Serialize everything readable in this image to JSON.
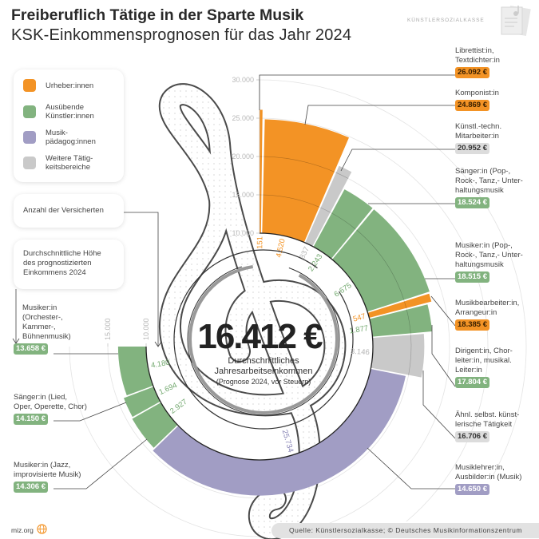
{
  "title": "Freiberuflich Tätige in der Sparte Musik",
  "subtitle": "KSK-Einkommensprognosen für das Jahr 2024",
  "logo_text": "KÜNSTLERSOZIALKASSE",
  "legend": [
    {
      "label": "Urheber:innen",
      "color": "#f39325"
    },
    {
      "label": "Ausübende\nKünstler:innen",
      "color": "#82b37f"
    },
    {
      "label": "Musik-\npädagog:innen",
      "color": "#a19dc4"
    },
    {
      "label": "Weitere Tätig-\nkeitsbereiche",
      "color": "#c9c9c9"
    }
  ],
  "info_boxes": {
    "count": "Anzahl der Versicherten",
    "income": "Durchschnittliche Höhe\ndes prognostizierten\nEinkommens 2024"
  },
  "center": {
    "value": "16.412 €",
    "caption": "Durchschnittliches\nJahresarbeitseinkommen",
    "note": "(Prognose 2024, vor Steuern)"
  },
  "chart_data": {
    "type": "radial-bar",
    "description_axis": "income (€) as radius, number of insured as arc width",
    "radial_axis": {
      "min": 10000,
      "max": 30000,
      "ticks": [
        "10.000",
        "15.000",
        "20.000",
        "25.000",
        "30.000"
      ],
      "left_ticks": [
        "15.000",
        "10.000"
      ]
    },
    "grid": true,
    "groups": {
      "orange": "#f39325",
      "green": "#82b37f",
      "grey": "#c9c9c9",
      "purple": "#a19dc4"
    },
    "segments": [
      {
        "label": "Librettist:in,\nTextdichter:in",
        "income": 26092,
        "income_label": "26.092 €",
        "count": 151,
        "count_label": "151",
        "group": "orange"
      },
      {
        "label": "Komponist:in",
        "income": 24869,
        "income_label": "24.869 €",
        "count": 4520,
        "count_label": "4.520",
        "group": "orange"
      },
      {
        "label": "Künstl.-techn.\nMitarbeiter:in",
        "income": 20952,
        "income_label": "20.952 €",
        "count": 837,
        "count_label": "837",
        "group": "grey"
      },
      {
        "label": "Sänger:in (Pop-,\nRock-, Tanz,- Unter-\nhaltungsmusik",
        "income": 18524,
        "income_label": "18.524 €",
        "count": 2243,
        "count_label": "2.243",
        "group": "green"
      },
      {
        "label": "Musiker:in (Pop-,\nRock-, Tanz,- Unter-\nhaltungsmusik",
        "income": 18515,
        "income_label": "18.515 €",
        "count": 6675,
        "count_label": "6.675",
        "group": "green"
      },
      {
        "label": "Musikbearbeiter:in,\nArrangeur:in",
        "income": 18385,
        "income_label": "18.385 €",
        "count": 547,
        "count_label": "547",
        "group": "orange"
      },
      {
        "label": "Dirigent:in, Chor-\nleiter:in, musikal.\nLeiter:in",
        "income": 17804,
        "income_label": "17.804 €",
        "count": 1877,
        "count_label": "1.877",
        "group": "green"
      },
      {
        "label": "Ähnl. selbst. künst-\nlerische Tätigkeit",
        "income": 16706,
        "income_label": "16.706 €",
        "count": 3146,
        "count_label": "3.146",
        "group": "grey"
      },
      {
        "label": "Musiklehrer:in,\nAusbilder:in (Musik)",
        "income": 14650,
        "income_label": "14.650 €",
        "count": 25734,
        "count_label": "25.734",
        "group": "purple"
      },
      {
        "label": "Musiker:in (Jazz,\nimprovisierte Musik)",
        "income": 14306,
        "income_label": "14.306 €",
        "count": 2927,
        "count_label": "2.927",
        "group": "green"
      },
      {
        "label": "Sänger:in (Lied,\nOper, Operette, Chor)",
        "income": 14150,
        "income_label": "14.150 €",
        "count": 1694,
        "count_label": "1.694",
        "group": "green"
      },
      {
        "label": "Musiker:in\n(Orchester-,\nKammer-,\nBühnenmusik)",
        "income": 13658,
        "income_label": "13.658 €",
        "count": 4180,
        "count_label": "4.180",
        "group": "green"
      }
    ]
  },
  "footer": {
    "site": "miz.org",
    "source": "Quelle: Künstlersozialkasse; © Deutsches Musikinformationszentrum"
  }
}
